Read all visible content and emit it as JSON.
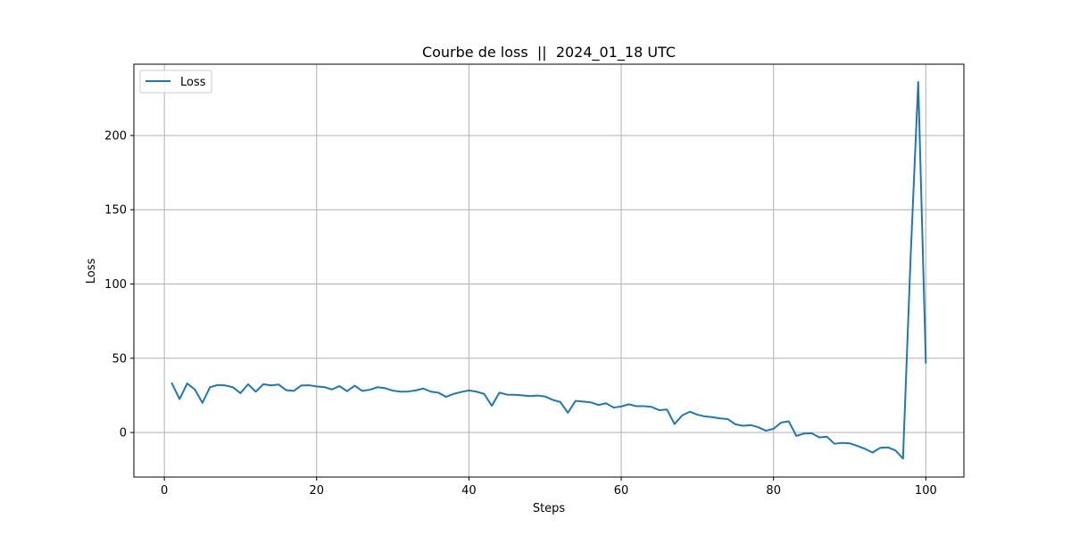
{
  "chart_data": {
    "type": "line",
    "title": "Courbe de loss  ||  2024_01_18 UTC",
    "xlabel": "Steps",
    "ylabel": "Loss",
    "xlim": [
      -4,
      105
    ],
    "ylim": [
      -30,
      248
    ],
    "xticks": [
      0,
      20,
      40,
      60,
      80,
      100
    ],
    "yticks": [
      0,
      50,
      100,
      150,
      200
    ],
    "grid": true,
    "legend_position": "top-left",
    "series": [
      {
        "name": "Loss",
        "color": "#1f77b4",
        "x": [
          1,
          2,
          3,
          4,
          5,
          6,
          7,
          8,
          9,
          10,
          11,
          12,
          13,
          14,
          15,
          16,
          17,
          18,
          19,
          20,
          21,
          22,
          23,
          24,
          25,
          26,
          27,
          28,
          29,
          30,
          31,
          32,
          33,
          34,
          35,
          36,
          37,
          38,
          39,
          40,
          41,
          42,
          43,
          44,
          45,
          46,
          47,
          48,
          49,
          50,
          51,
          52,
          53,
          54,
          55,
          56,
          57,
          58,
          59,
          60,
          61,
          62,
          63,
          64,
          65,
          66,
          67,
          68,
          69,
          70,
          71,
          72,
          73,
          74,
          75,
          76,
          77,
          78,
          79,
          80,
          81,
          82,
          83,
          84,
          85,
          86,
          87,
          88,
          89,
          90,
          91,
          92,
          93,
          94,
          95,
          96,
          97,
          98,
          99,
          100
        ],
        "y": [
          33,
          22.5,
          33,
          29,
          20,
          30.5,
          32,
          31.7,
          30.5,
          26.5,
          32.5,
          27.5,
          32.5,
          31.7,
          32.3,
          28.5,
          28,
          31.7,
          31.8,
          31,
          30.6,
          29,
          31.2,
          27.8,
          31.5,
          28,
          28.8,
          30.5,
          29.8,
          28.2,
          27.5,
          27.6,
          28.3,
          29.6,
          27.5,
          26.8,
          24,
          26,
          27.3,
          28.3,
          27.5,
          26,
          18,
          26.8,
          25.5,
          25.4,
          25,
          24.5,
          24.9,
          24.2,
          22,
          20.5,
          13.3,
          21.3,
          20.8,
          20.3,
          18.5,
          19.7,
          16.8,
          17.5,
          19,
          17.7,
          17.7,
          17.2,
          15,
          15.5,
          5.7,
          11.5,
          14,
          12,
          10.8,
          10.3,
          9.5,
          9,
          5.5,
          4.5,
          5,
          3.5,
          1.2,
          2.5,
          6.7,
          7.5,
          -2.3,
          -0.7,
          -0.5,
          -3.3,
          -2.8,
          -7.6,
          -7,
          -7.3,
          -9,
          -11,
          -13.5,
          -10.3,
          -10,
          -12,
          -17.6,
          118,
          236,
          47
        ]
      }
    ]
  }
}
